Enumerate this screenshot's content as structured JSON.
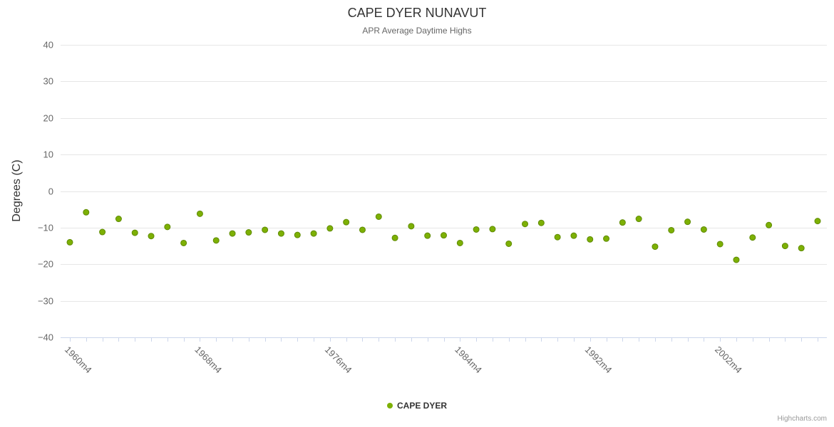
{
  "title": "CAPE DYER NUNAVUT",
  "subtitle": "APR Average Daytime Highs",
  "y_axis_title": "Degrees (C)",
  "legend": {
    "label": "CAPE DYER"
  },
  "credits": "Highcharts.com",
  "colors": {
    "marker_fill": "#7db004",
    "marker_stroke": "#5e8a02",
    "grid": "#e6e6e6",
    "axis_line": "#ccd6eb",
    "tick": "#ccd6eb",
    "axis_label": "#666666",
    "title_text": "#333333"
  },
  "chart_data": {
    "type": "scatter",
    "title": "CAPE DYER NUNAVUT",
    "subtitle": "APR Average Daytime Highs",
    "xlabel": "",
    "ylabel": "Degrees (C)",
    "ylim": [
      -40,
      40
    ],
    "grid": true,
    "legend_position": "bottom",
    "y_ticks": [
      40,
      30,
      20,
      10,
      0,
      -10,
      -20,
      -30,
      -40
    ],
    "y_tick_labels": [
      "40",
      "30",
      "20",
      "10",
      "0",
      "−10",
      "−20",
      "−30",
      "−40"
    ],
    "x_tick_labels": [
      {
        "index": 0,
        "label": "1960m4"
      },
      {
        "index": 8,
        "label": "1968m4"
      },
      {
        "index": 16,
        "label": "1976m4"
      },
      {
        "index": 24,
        "label": "1984m4"
      },
      {
        "index": 32,
        "label": "1992m4"
      },
      {
        "index": 40,
        "label": "2002m4"
      }
    ],
    "series": [
      {
        "name": "CAPE DYER",
        "values": [
          -14,
          -5.8,
          -11.2,
          -7.6,
          -11.4,
          -12.3,
          -9.8,
          -14.2,
          -6.2,
          -13.5,
          -11.6,
          -11.3,
          -10.6,
          -11.6,
          -12,
          -11.6,
          -10.2,
          -8.5,
          -10.6,
          -7,
          -12.8,
          -9.6,
          -12.2,
          -12.1,
          -14.2,
          -10.5,
          -10.4,
          -14.4,
          -9,
          -8.7,
          -12.6,
          -12.2,
          -13.2,
          -13,
          -8.6,
          -7.6,
          -15.2,
          -10.7,
          -8.4,
          -10.5,
          -14.5,
          -18.8,
          -12.7,
          -9.3,
          -15,
          -15.6,
          -8.2
        ]
      }
    ]
  }
}
